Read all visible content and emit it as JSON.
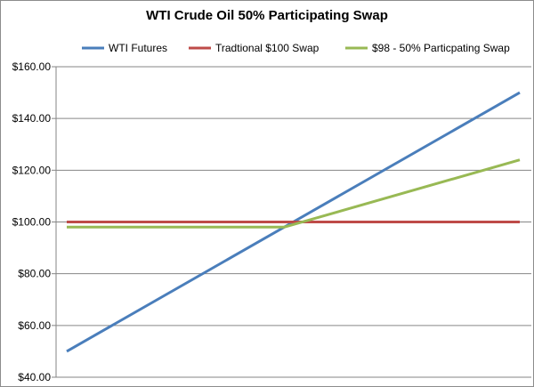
{
  "chart_data": {
    "type": "line",
    "title": "WTI Crude Oil 50% Participating Swap",
    "xlabel": "",
    "ylabel": "",
    "ylim": [
      40,
      160
    ],
    "y_ticks": [
      "$40.00",
      "$60.00",
      "$80.00",
      "$100.00",
      "$120.00",
      "$140.00",
      "$160.00"
    ],
    "y_tick_values": [
      40,
      60,
      80,
      100,
      120,
      140,
      160
    ],
    "x": [
      50,
      150
    ],
    "grid": "horizontal",
    "legend_position": "top",
    "series": [
      {
        "name": "WTI Futures",
        "color": "#4a7ebb",
        "values": [
          50,
          150
        ]
      },
      {
        "name": "Tradtional $100 Swap",
        "color": "#be4b48",
        "values": [
          100,
          100
        ]
      },
      {
        "name": "$98 - 50% Particpating Swap",
        "color": "#98b954",
        "points": [
          [
            50,
            98
          ],
          [
            98,
            98
          ],
          [
            150,
            124
          ]
        ]
      }
    ]
  }
}
